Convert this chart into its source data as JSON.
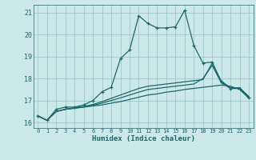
{
  "xlabel": "Humidex (Indice chaleur)",
  "bg_color": "#cce8e8",
  "grid_color": "#99cccc",
  "line_color": "#1a6b6b",
  "xlim": [
    -0.5,
    23.5
  ],
  "ylim": [
    15.75,
    21.35
  ],
  "yticks": [
    16,
    17,
    18,
    19,
    20,
    21
  ],
  "xticks": [
    0,
    1,
    2,
    3,
    4,
    5,
    6,
    7,
    8,
    9,
    10,
    11,
    12,
    13,
    14,
    15,
    16,
    17,
    18,
    19,
    20,
    21,
    22,
    23
  ],
  "series": [
    {
      "x": [
        0,
        1,
        2,
        3,
        4,
        5,
        6,
        7,
        8,
        9,
        10,
        11,
        12,
        13,
        14,
        15,
        16,
        17,
        18,
        19,
        20,
        21,
        22,
        23
      ],
      "y": [
        16.3,
        16.1,
        16.6,
        16.7,
        16.7,
        16.8,
        17.0,
        17.4,
        17.6,
        18.9,
        19.3,
        20.85,
        20.5,
        20.3,
        20.3,
        20.35,
        21.1,
        19.5,
        18.7,
        18.75,
        17.85,
        17.55,
        17.55,
        17.15
      ],
      "marker": "+"
    },
    {
      "x": [
        0,
        1,
        2,
        3,
        4,
        5,
        6,
        7,
        8,
        9,
        10,
        11,
        12,
        13,
        14,
        15,
        16,
        17,
        18,
        19,
        20,
        21,
        22,
        23
      ],
      "y": [
        16.3,
        16.1,
        16.5,
        16.6,
        16.65,
        16.7,
        16.75,
        16.8,
        16.88,
        16.95,
        17.05,
        17.15,
        17.25,
        17.3,
        17.38,
        17.43,
        17.5,
        17.55,
        17.6,
        17.65,
        17.7,
        17.65,
        17.5,
        17.1
      ],
      "marker": null
    },
    {
      "x": [
        0,
        1,
        2,
        3,
        4,
        5,
        6,
        7,
        8,
        9,
        10,
        11,
        12,
        13,
        14,
        15,
        16,
        17,
        18,
        19,
        20,
        21,
        22,
        23
      ],
      "y": [
        16.3,
        16.1,
        16.5,
        16.6,
        16.65,
        16.7,
        16.78,
        16.88,
        17.0,
        17.12,
        17.25,
        17.38,
        17.5,
        17.55,
        17.6,
        17.65,
        17.7,
        17.75,
        18.0,
        18.6,
        17.8,
        17.55,
        17.55,
        17.15
      ],
      "marker": null
    },
    {
      "x": [
        0,
        1,
        2,
        3,
        4,
        5,
        6,
        7,
        8,
        9,
        10,
        11,
        12,
        13,
        14,
        15,
        16,
        17,
        18,
        19,
        20,
        21,
        22,
        23
      ],
      "y": [
        16.3,
        16.1,
        16.5,
        16.6,
        16.68,
        16.73,
        16.82,
        16.95,
        17.1,
        17.25,
        17.4,
        17.55,
        17.65,
        17.7,
        17.75,
        17.8,
        17.85,
        17.9,
        17.95,
        18.7,
        17.88,
        17.58,
        17.58,
        17.18
      ],
      "marker": null
    }
  ]
}
